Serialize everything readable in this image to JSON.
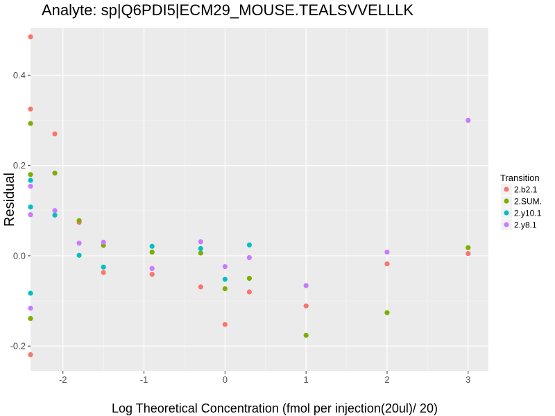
{
  "chart_data": {
    "type": "scatter",
    "title": "Analyte: sp|Q6PDI5|ECM29_MOUSE.TEALSVVELLLK",
    "xlabel": "Log Theoretical Concentration (fmol per injection(20ul)/ 20)",
    "ylabel": "Residual",
    "xlim": [
      -2.4,
      3.25
    ],
    "ylim": [
      -0.255,
      0.505
    ],
    "xticks": [
      -2,
      -1,
      0,
      1,
      2,
      3
    ],
    "yticks": [
      -0.2,
      0.0,
      0.2,
      0.4
    ],
    "ytick_labels": [
      "-0.2",
      "0.0",
      "0.2",
      "0.4"
    ],
    "grid": true,
    "legend": {
      "title": "Transition",
      "position": "right"
    },
    "series": [
      {
        "name": "2.b2.1",
        "color": "#F8766D",
        "x": [
          -2.4,
          -2.4,
          -2.4,
          -2.1,
          -1.8,
          -1.5,
          -0.9,
          -0.3,
          0,
          0.3,
          1,
          2,
          3
        ],
        "y": [
          0.485,
          0.325,
          -0.219,
          0.27,
          0.074,
          -0.037,
          -0.041,
          -0.069,
          -0.152,
          -0.08,
          -0.111,
          -0.018,
          0.005
        ]
      },
      {
        "name": "2.SUM.",
        "color": "#7CAE00",
        "x": [
          -2.4,
          -2.4,
          -2.4,
          -2.1,
          -1.8,
          -1.5,
          -0.9,
          -0.3,
          0,
          0.3,
          1,
          2,
          3
        ],
        "y": [
          0.293,
          0.18,
          -0.139,
          0.183,
          0.078,
          0.023,
          0.008,
          0.006,
          -0.073,
          -0.05,
          -0.176,
          -0.126,
          0.018
        ]
      },
      {
        "name": "2.y10.1",
        "color": "#00BFC4",
        "x": [
          -2.4,
          -2.4,
          -2.4,
          -2.1,
          -1.8,
          -1.5,
          -0.9,
          -0.3,
          0,
          0.3
        ],
        "y": [
          0.167,
          0.108,
          -0.083,
          0.09,
          0.001,
          -0.025,
          0.021,
          0.016,
          -0.052,
          0.024
        ]
      },
      {
        "name": "2.y8.1",
        "color": "#C77CFF",
        "x": [
          -2.4,
          -2.4,
          -2.4,
          -2.1,
          -1.8,
          -1.5,
          -0.9,
          -0.3,
          0,
          0.3,
          1,
          2,
          3
        ],
        "y": [
          0.154,
          0.091,
          -0.116,
          0.1,
          0.028,
          0.03,
          -0.028,
          0.031,
          -0.024,
          -0.004,
          -0.066,
          0.008,
          0.3
        ]
      }
    ]
  }
}
